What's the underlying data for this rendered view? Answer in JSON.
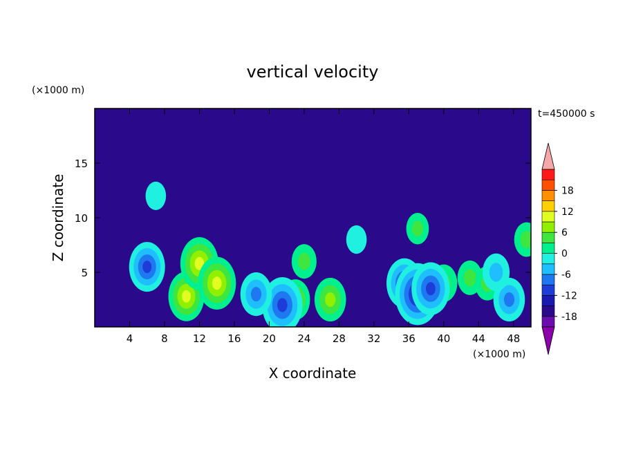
{
  "chart_data": {
    "type": "heatmap",
    "title": "vertical velocity",
    "xlabel": "X coordinate",
    "ylabel": "Z coordinate",
    "x_unit": "(×1000 m)",
    "y_unit": "(×1000 m)",
    "time_label": "t=450000 s",
    "xlim": [
      0,
      50
    ],
    "ylim": [
      0,
      20
    ],
    "x_ticks": [
      4,
      8,
      12,
      16,
      20,
      24,
      28,
      32,
      36,
      40,
      44,
      48
    ],
    "y_ticks": [
      5,
      10,
      15
    ],
    "colorbar": {
      "levels": [
        -21,
        -18,
        -15,
        -12,
        -9,
        -6,
        -3,
        0,
        3,
        6,
        9,
        12,
        15,
        18,
        21
      ],
      "labels": [
        18,
        12,
        6,
        0,
        -6,
        -12,
        -18
      ],
      "colors": [
        "#6a0dad",
        "#2a0a8a",
        "#1a1ab0",
        "#1e3cd8",
        "#1e78f0",
        "#1ebeff",
        "#20f0e0",
        "#00f090",
        "#40e640",
        "#90f000",
        "#e0ff20",
        "#ffd000",
        "#ff9000",
        "#ff5000",
        "#ff1a1a"
      ],
      "over_color": "#f4a8a8",
      "under_color": "#8c00aa"
    },
    "background_level": 1,
    "features": [
      {
        "kind": "updraft",
        "x": 10.5,
        "z": 2.8,
        "w_peak": 10
      },
      {
        "kind": "updraft",
        "x": 12,
        "z": 5.8,
        "w_peak": 11
      },
      {
        "kind": "updraft",
        "x": 14,
        "z": 4,
        "w_peak": 11
      },
      {
        "kind": "updraft",
        "x": 23,
        "z": 2.5,
        "w_peak": 7
      },
      {
        "kind": "updraft",
        "x": 27,
        "z": 2.5,
        "w_peak": 8
      },
      {
        "kind": "updraft",
        "x": 24,
        "z": 6,
        "w_peak": 5
      },
      {
        "kind": "updraft",
        "x": 40,
        "z": 4,
        "w_peak": 6
      },
      {
        "kind": "updraft",
        "x": 43,
        "z": 4.5,
        "w_peak": 5
      },
      {
        "kind": "updraft",
        "x": 45,
        "z": 4,
        "w_peak": 5
      },
      {
        "kind": "updraft",
        "x": 37,
        "z": 9,
        "w_peak": 4
      },
      {
        "kind": "updraft",
        "x": 49.5,
        "z": 8,
        "w_peak": 5
      },
      {
        "kind": "downdraft",
        "x": 6,
        "z": 5.5,
        "w_peak": -10
      },
      {
        "kind": "downdraft",
        "x": 21.5,
        "z": 2,
        "w_peak": -12
      },
      {
        "kind": "downdraft",
        "x": 18.5,
        "z": 3,
        "w_peak": -8
      },
      {
        "kind": "downdraft",
        "x": 35.5,
        "z": 4,
        "w_peak": -10
      },
      {
        "kind": "downdraft",
        "x": 37,
        "z": 3,
        "w_peak": -14
      },
      {
        "kind": "downdraft",
        "x": 38.5,
        "z": 3.5,
        "w_peak": -11
      },
      {
        "kind": "downdraft",
        "x": 47.5,
        "z": 2.5,
        "w_peak": -8
      },
      {
        "kind": "downdraft",
        "x": 46,
        "z": 5,
        "w_peak": -6
      },
      {
        "kind": "weak_downdraft",
        "x": 7,
        "z": 12,
        "w_peak": -3
      },
      {
        "kind": "weak_downdraft",
        "x": 30,
        "z": 8,
        "w_peak": -3
      }
    ]
  }
}
